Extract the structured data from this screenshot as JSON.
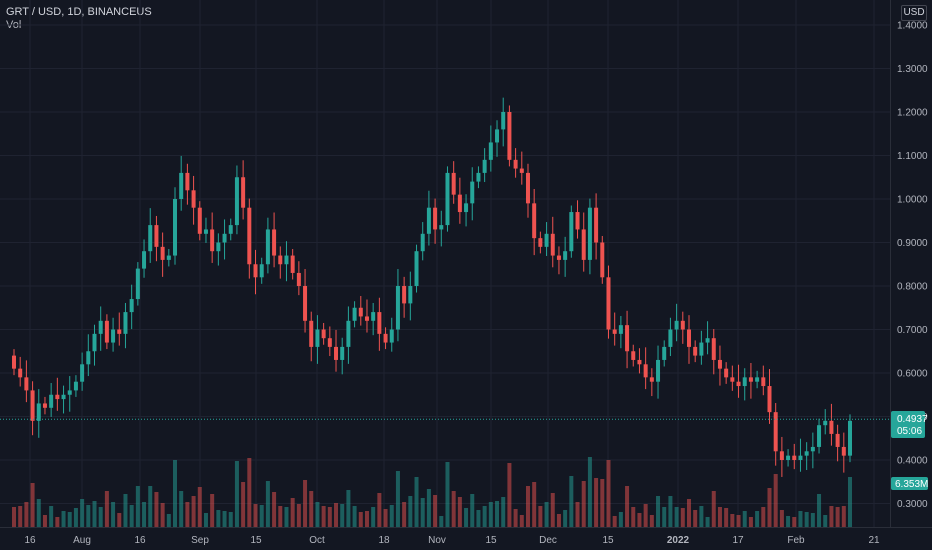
{
  "header": {
    "symbol_line": "GRT / USD, 1D, BINANCEUS",
    "volume_label": "Vol"
  },
  "axis": {
    "currency": "USD",
    "price_ticks": [
      "1.4000",
      "1.3000",
      "1.2000",
      "1.1000",
      "1.0000",
      "0.9000",
      "0.8000",
      "0.7000",
      "0.6000",
      "0.5000",
      "0.4000",
      "0.3000"
    ],
    "time_ticks": [
      "16",
      "Aug",
      "16",
      "Sep",
      "15",
      "Oct",
      "18",
      "Nov",
      "15",
      "Dec",
      "15",
      "2022",
      "17",
      "Feb",
      "21"
    ]
  },
  "price_tag": {
    "value": "0.4937",
    "countdown": "05:06",
    "color": "#26a69a"
  },
  "volume_tag": {
    "value": "6.353M",
    "color": "#26a69a"
  },
  "colors": {
    "background": "#131722",
    "up": "#26a69a",
    "down": "#ef5350",
    "grid": "#1f2331"
  },
  "chart_data": {
    "type": "candlestick",
    "title": "GRT / USD, 1D, BINANCEUS",
    "ylim": [
      0.26,
      1.42
    ],
    "grid": true,
    "last_price": 0.4937,
    "last_volume": "6.353M",
    "x_tick_labels": [
      "16",
      "Aug",
      "16",
      "Sep",
      "15",
      "Oct",
      "18",
      "Nov",
      "15",
      "Dec",
      "15",
      "2022",
      "17",
      "Feb",
      "21"
    ],
    "close": [
      0.61,
      0.59,
      0.56,
      0.49,
      0.53,
      0.52,
      0.55,
      0.54,
      0.55,
      0.56,
      0.58,
      0.62,
      0.65,
      0.69,
      0.72,
      0.67,
      0.7,
      0.69,
      0.74,
      0.77,
      0.84,
      0.88,
      0.94,
      0.89,
      0.86,
      0.87,
      1.0,
      1.06,
      1.02,
      0.98,
      0.92,
      0.93,
      0.88,
      0.9,
      0.92,
      0.94,
      1.05,
      0.98,
      0.85,
      0.82,
      0.85,
      0.93,
      0.87,
      0.85,
      0.87,
      0.83,
      0.8,
      0.72,
      0.66,
      0.7,
      0.68,
      0.66,
      0.63,
      0.66,
      0.72,
      0.75,
      0.73,
      0.72,
      0.74,
      0.69,
      0.67,
      0.7,
      0.8,
      0.76,
      0.8,
      0.88,
      0.92,
      0.98,
      0.93,
      0.94,
      1.06,
      1.01,
      0.97,
      0.99,
      1.04,
      1.06,
      1.09,
      1.13,
      1.16,
      1.2,
      1.09,
      1.07,
      1.06,
      0.99,
      0.91,
      0.89,
      0.92,
      0.87,
      0.86,
      0.88,
      0.97,
      0.93,
      0.86,
      0.98,
      0.9,
      0.82,
      0.7,
      0.69,
      0.71,
      0.65,
      0.63,
      0.62,
      0.59,
      0.58,
      0.63,
      0.66,
      0.7,
      0.72,
      0.7,
      0.66,
      0.64,
      0.67,
      0.68,
      0.63,
      0.61,
      0.59,
      0.58,
      0.57,
      0.59,
      0.58,
      0.59,
      0.57,
      0.51,
      0.42,
      0.4,
      0.41,
      0.4,
      0.41,
      0.42,
      0.43,
      0.48,
      0.49,
      0.46,
      0.43,
      0.41,
      0.49
    ]
  }
}
